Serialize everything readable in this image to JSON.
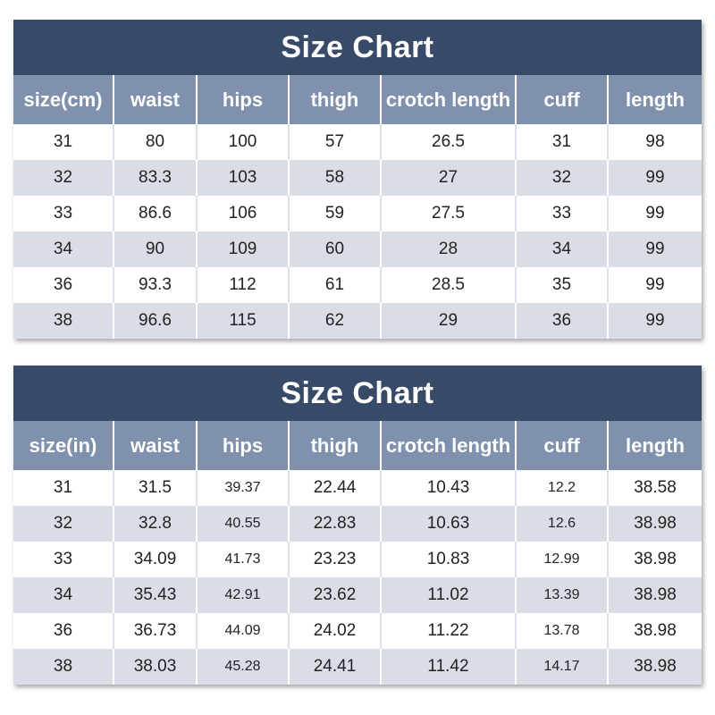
{
  "charts": [
    {
      "title": "Size Chart",
      "headers": [
        "size(cm)",
        "waist",
        "hips",
        "thigh",
        "crotch length",
        "cuff",
        "length"
      ],
      "rows": [
        [
          "31",
          "80",
          "100",
          "57",
          "26.5",
          "31",
          "98"
        ],
        [
          "32",
          "83.3",
          "103",
          "58",
          "27",
          "32",
          "99"
        ],
        [
          "33",
          "86.6",
          "106",
          "59",
          "27.5",
          "33",
          "99"
        ],
        [
          "34",
          "90",
          "109",
          "60",
          "28",
          "34",
          "99"
        ],
        [
          "36",
          "93.3",
          "112",
          "61",
          "28.5",
          "35",
          "99"
        ],
        [
          "38",
          "96.6",
          "115",
          "62",
          "29",
          "36",
          "99"
        ]
      ]
    },
    {
      "title": "Size Chart",
      "headers": [
        "size(in)",
        "waist",
        "hips",
        "thigh",
        "crotch length",
        "cuff",
        "length"
      ],
      "rows": [
        [
          "31",
          "31.5",
          "39.37",
          "22.44",
          "10.43",
          "12.2",
          "38.58"
        ],
        [
          "32",
          "32.8",
          "40.55",
          "22.83",
          "10.63",
          "12.6",
          "38.98"
        ],
        [
          "33",
          "34.09",
          "41.73",
          "23.23",
          "10.83",
          "12.99",
          "38.98"
        ],
        [
          "34",
          "35.43",
          "42.91",
          "23.62",
          "11.02",
          "13.39",
          "38.98"
        ],
        [
          "36",
          "36.73",
          "44.09",
          "24.02",
          "11.22",
          "13.78",
          "38.98"
        ],
        [
          "38",
          "38.03",
          "45.28",
          "24.41",
          "11.42",
          "14.17",
          "38.98"
        ]
      ]
    }
  ],
  "colors": {
    "title_bg": "#374a68",
    "header_bg": "#7f91ac",
    "row_alt_bg": "#d9dee6",
    "text": "#222222"
  }
}
